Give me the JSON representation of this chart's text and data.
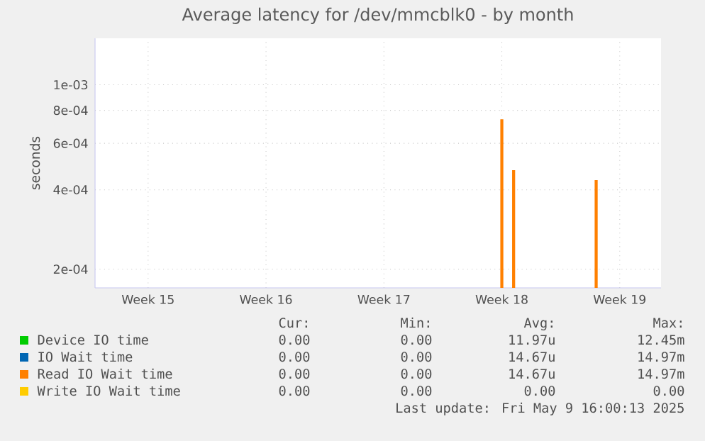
{
  "chart_data": {
    "type": "bar",
    "title": "Average latency for /dev/mmcblk0 - by month",
    "ylabel": "seconds",
    "categories": [
      null,
      null,
      null,
      null,
      "Week 15",
      null,
      null,
      null,
      null,
      null,
      null,
      null,
      null,
      null,
      "Week 16",
      null,
      null,
      null,
      null,
      null,
      null,
      null,
      null,
      null,
      "Week 17",
      null,
      null,
      null,
      null,
      null,
      null,
      null,
      null,
      null,
      "Week 18",
      null,
      null,
      null,
      null,
      null,
      null,
      null,
      null,
      null,
      "Week 19",
      null,
      null,
      null
    ],
    "series": [
      {
        "name": "Device IO time",
        "color": "#00cc00",
        "values": [
          null,
          null,
          null,
          null,
          null,
          null,
          null,
          null,
          null,
          null,
          null,
          null,
          null,
          null,
          null,
          null,
          null,
          null,
          null,
          null,
          null,
          null,
          null,
          null,
          null,
          null,
          null,
          null,
          null,
          null,
          null,
          null,
          null,
          null,
          null,
          null,
          null,
          null,
          null,
          null,
          null,
          null,
          null,
          null,
          null,
          null,
          null,
          null
        ]
      },
      {
        "name": "IO Wait time",
        "color": "#0066b3",
        "values": [
          null,
          null,
          null,
          null,
          null,
          null,
          null,
          null,
          null,
          null,
          null,
          null,
          null,
          null,
          null,
          null,
          null,
          null,
          null,
          null,
          null,
          null,
          null,
          null,
          null,
          null,
          null,
          null,
          null,
          null,
          null,
          null,
          null,
          null,
          null,
          null,
          null,
          null,
          null,
          null,
          null,
          null,
          null,
          null,
          null,
          null,
          null,
          null
        ]
      },
      {
        "name": "Read IO Wait time",
        "color": "#ff8000",
        "values": [
          null,
          null,
          null,
          null,
          null,
          null,
          null,
          null,
          null,
          null,
          null,
          null,
          null,
          null,
          null,
          null,
          null,
          null,
          null,
          null,
          null,
          null,
          null,
          null,
          null,
          null,
          null,
          null,
          null,
          null,
          null,
          null,
          null,
          null,
          0.00074,
          0.000475,
          null,
          null,
          null,
          null,
          null,
          null,
          0.000435,
          null,
          null,
          null,
          null,
          null
        ]
      },
      {
        "name": "Write IO Wait time",
        "color": "#ffcc00",
        "values": [
          null,
          null,
          null,
          null,
          null,
          null,
          null,
          null,
          null,
          null,
          null,
          null,
          null,
          null,
          null,
          null,
          null,
          null,
          null,
          null,
          null,
          null,
          null,
          null,
          null,
          null,
          null,
          null,
          null,
          null,
          null,
          null,
          null,
          null,
          null,
          null,
          null,
          null,
          null,
          null,
          null,
          null,
          null,
          null,
          null,
          null,
          null,
          null
        ]
      }
    ],
    "log": "y",
    "grid": true,
    "legend": "bottom",
    "ylim": [
      0.00017,
      0.0015
    ],
    "yticks": [
      {
        "value": 0.0002,
        "label": "2e-04"
      },
      {
        "value": 0.0004,
        "label": "4e-04"
      },
      {
        "value": 0.0006,
        "label": "6e-04"
      },
      {
        "value": 0.0008,
        "label": "8e-04"
      },
      {
        "value": 0.001,
        "label": "1e-03"
      }
    ],
    "annotations": [
      "Cur:",
      "Min:",
      "Avg:",
      "Max:",
      "0.00",
      "0.00",
      "11.97u",
      "12.45m",
      "0.00",
      "0.00",
      "14.67u",
      "14.97m",
      "0.00",
      "0.00",
      "14.67u",
      "14.97m",
      "0.00",
      "0.00",
      "0.00",
      "0.00",
      "Last update: Fri May  9 16:00:13 2025"
    ]
  }
}
